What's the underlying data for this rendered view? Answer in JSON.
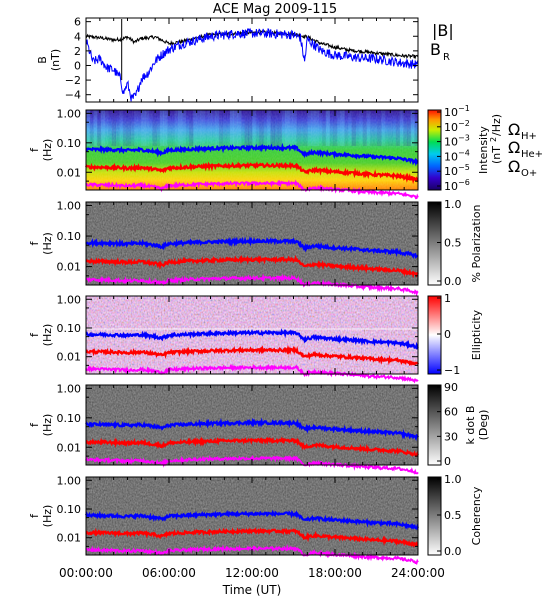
{
  "chart_data": {
    "title": "ACE Mag 2009-115",
    "type": "line",
    "x_label": "Time (UT)",
    "x_ticks": [
      "00:00:00",
      "06:00:00",
      "12:00:00",
      "18:00:00",
      "24:00:00"
    ],
    "x_hours": [
      0,
      6,
      12,
      18,
      24
    ],
    "panels": [
      {
        "id": "field",
        "type": "line",
        "ylabel": [
          "B",
          "(nT)"
        ],
        "ylim": [
          -5,
          6.5
        ],
        "yticks": [
          -4,
          -2,
          0,
          2,
          4,
          6
        ],
        "legend": [
          "|B|",
          "B",
          "R"
        ],
        "series": [
          {
            "name": "|B|",
            "color": "#000000",
            "hours": [
              0,
              1,
              2,
              2.6,
              3,
              3.5,
              4,
              5,
              6,
              7,
              8,
              9,
              10,
              11,
              12,
              13,
              14,
              15,
              15.5,
              16,
              17,
              18,
              19,
              20,
              21,
              22,
              23,
              24
            ],
            "values": [
              4.0,
              3.8,
              3.5,
              3.6,
              3.9,
              3.2,
              3.7,
              3.9,
              3.0,
              3.3,
              3.8,
              4.2,
              4.3,
              4.4,
              4.5,
              4.5,
              4.4,
              4.3,
              4.1,
              3.9,
              3.0,
              2.5,
              2.1,
              1.9,
              1.7,
              1.5,
              1.3,
              1.2
            ]
          },
          {
            "name": "B_R",
            "color": "#0000ff",
            "hours": [
              0,
              0.5,
              1,
              1.5,
              2,
              2.5,
              2.7,
              3,
              3.3,
              3.6,
              4,
              4.5,
              5,
              5.5,
              6,
              7,
              8,
              9,
              10,
              11,
              12,
              13,
              14,
              15,
              15.5,
              15.8,
              16,
              17,
              18,
              19,
              20,
              21,
              22,
              23,
              24
            ],
            "values": [
              3.4,
              0.5,
              0.9,
              -0.3,
              -0.6,
              -1.8,
              -3.8,
              -2.5,
              -4.6,
              -4.2,
              -1.8,
              -1.0,
              0.6,
              1.5,
              2.2,
              3.0,
              3.5,
              4.0,
              4.2,
              4.4,
              4.4,
              4.4,
              4.3,
              4.2,
              3.8,
              0.5,
              3.6,
              2.0,
              1.4,
              1.2,
              1.0,
              0.9,
              0.6,
              0.3,
              0.1
            ]
          }
        ]
      },
      {
        "id": "intensity",
        "type": "heatmap",
        "ylabel": [
          "f",
          "(Hz)"
        ],
        "yticks": [
          "1.00",
          "0.10",
          "0.01"
        ],
        "colorbar": {
          "ticks": [
            "10",
            "10",
            "10",
            "10",
            "10",
            "10"
          ],
          "exponents": [
            "−1",
            "−2",
            "−3",
            "−4",
            "−5",
            "−6"
          ],
          "label": [
            "Intensity",
            "(nT",
            "/Hz)"
          ]
        },
        "legend": [
          {
            "sym": "Ω",
            "sub": "H+",
            "color": "#0000ff"
          },
          {
            "sym": "Ω",
            "sub": "He+",
            "color": "#ff0000"
          },
          {
            "sym": "Ω",
            "sub": "O+",
            "color": "#ff00ff"
          }
        ]
      },
      {
        "id": "polarization",
        "type": "heatmap",
        "ylabel": [
          "f",
          "(Hz)"
        ],
        "yticks": [
          "1.00",
          "0.10",
          "0.01"
        ],
        "colorbar": {
          "ticks": [
            "1.0",
            "0.5",
            "0.0"
          ],
          "label": [
            "% Polarization"
          ]
        }
      },
      {
        "id": "ellipticity",
        "type": "heatmap",
        "ylabel": [
          "f",
          "(Hz)"
        ],
        "yticks": [
          "1.00",
          "0.10",
          "0.01"
        ],
        "colorbar": {
          "ticks": [
            "1",
            "0",
            "−1"
          ],
          "label": [
            "Ellipticity"
          ]
        }
      },
      {
        "id": "kdotb",
        "type": "heatmap",
        "ylabel": [
          "f",
          "(Hz)"
        ],
        "yticks": [
          "1.00",
          "0.10",
          "0.01"
        ],
        "colorbar": {
          "ticks": [
            "90",
            "60",
            "30",
            "0"
          ],
          "label": [
            "k dot B",
            "(Deg)"
          ]
        }
      },
      {
        "id": "coherency",
        "type": "heatmap",
        "ylabel": [
          "f",
          "(Hz)"
        ],
        "yticks": [
          "1.00",
          "0.10",
          "0.01"
        ],
        "colorbar": {
          "ticks": [
            "1.0",
            "0.5",
            "0.0"
          ],
          "label": [
            "Coherency"
          ]
        }
      }
    ],
    "gyrofrequency_lines": [
      {
        "name": "H+",
        "color": "#0000ff",
        "hours": [
          0,
          2,
          3,
          4,
          5,
          5.5,
          6,
          8,
          10,
          12,
          14,
          15.2,
          15.8,
          16.5,
          17.5,
          18.5,
          19.5,
          20.5,
          21.5,
          22.5,
          23.5,
          24
        ],
        "values": [
          0.06,
          0.058,
          0.055,
          0.058,
          0.05,
          0.045,
          0.056,
          0.062,
          0.066,
          0.068,
          0.068,
          0.067,
          0.04,
          0.048,
          0.043,
          0.04,
          0.037,
          0.034,
          0.032,
          0.03,
          0.025,
          0.022
        ]
      },
      {
        "name": "He+",
        "color": "#ff0000",
        "hours": [
          0,
          2,
          3,
          4,
          5,
          5.5,
          6,
          8,
          10,
          12,
          14,
          15.2,
          15.8,
          16.5,
          17.5,
          18.5,
          19.5,
          20.5,
          21.5,
          22.5,
          23.5,
          24
        ],
        "values": [
          0.015,
          0.0145,
          0.0138,
          0.0145,
          0.0125,
          0.0112,
          0.014,
          0.0155,
          0.0165,
          0.017,
          0.017,
          0.0168,
          0.01,
          0.012,
          0.0108,
          0.01,
          0.0093,
          0.0085,
          0.008,
          0.0075,
          0.0062,
          0.0055
        ]
      },
      {
        "name": "O+",
        "color": "#ff00ff",
        "hours": [
          0,
          2,
          3,
          4,
          5,
          5.5,
          6,
          8,
          10,
          12,
          14,
          15.2,
          15.8,
          16.5,
          17.5,
          18.5,
          19.5,
          20.5,
          21.5,
          22.5,
          23.5,
          24
        ],
        "values": [
          0.0038,
          0.0036,
          0.0034,
          0.0036,
          0.0031,
          0.0028,
          0.0035,
          0.0039,
          0.0041,
          0.0042,
          0.0042,
          0.0042,
          0.0025,
          0.003,
          0.0027,
          0.0025,
          0.0023,
          0.0021,
          0.002,
          0.0019,
          0.0016,
          0.0014
        ]
      }
    ]
  }
}
